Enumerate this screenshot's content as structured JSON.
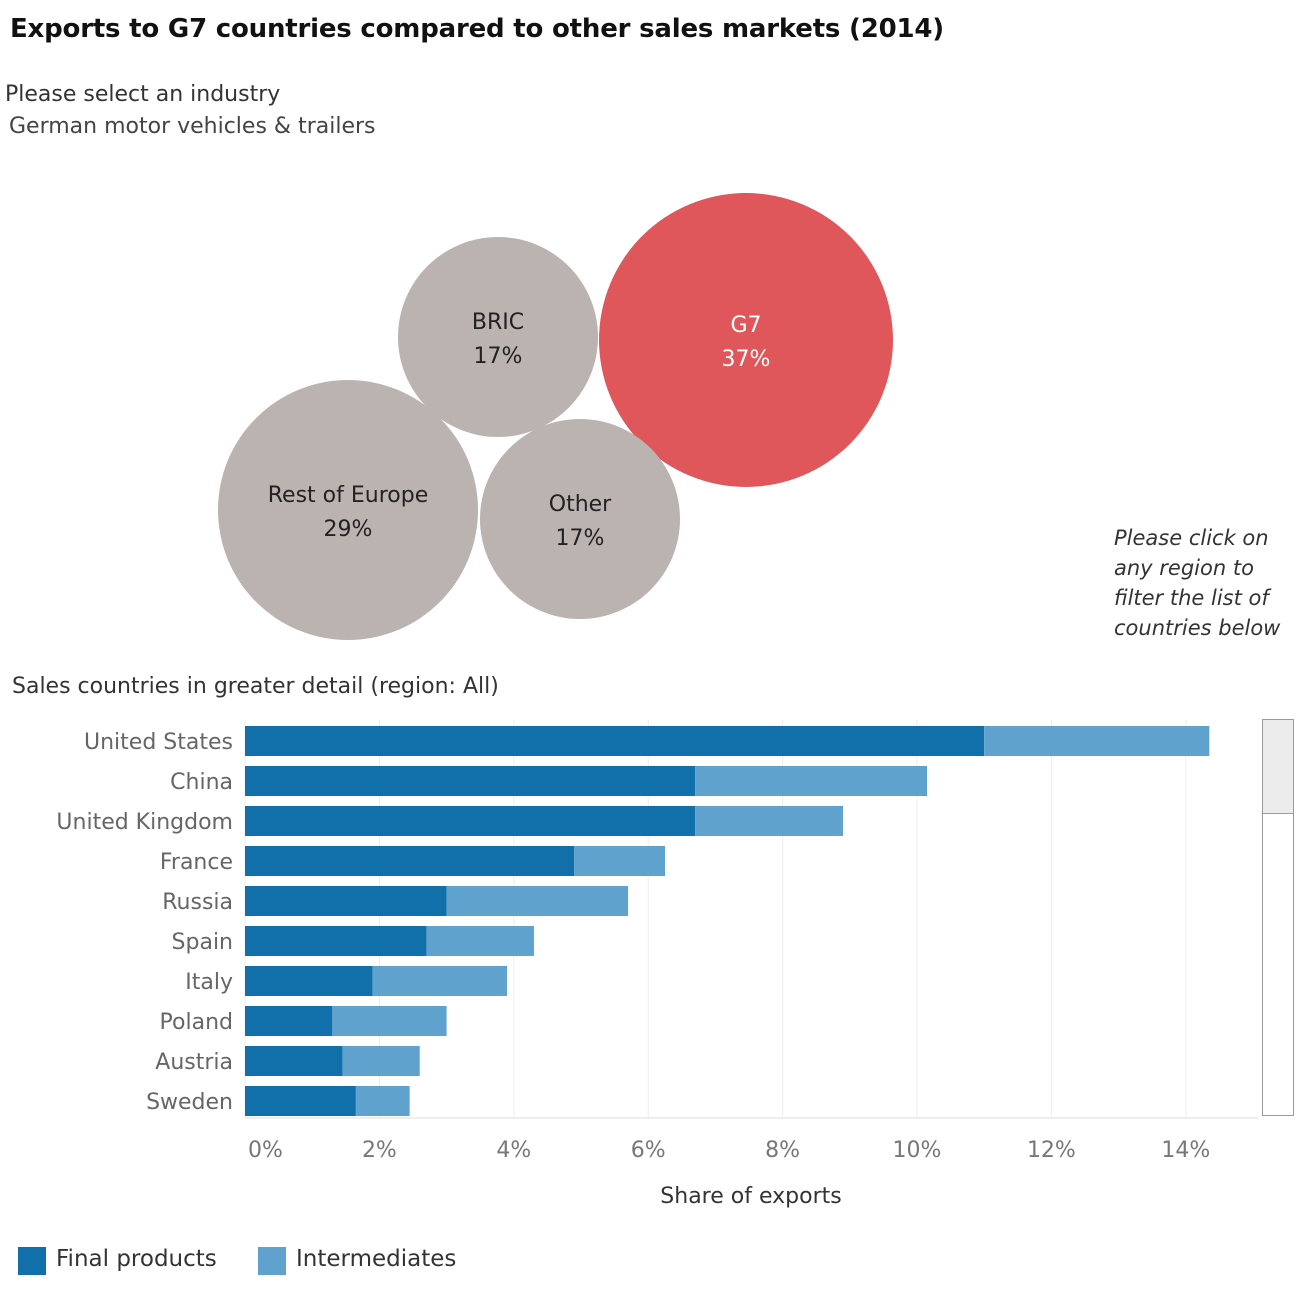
{
  "title": "Exports to G7 countries compared to other sales markets (2014)",
  "industry_selector": {
    "label": "Please select an industry",
    "value": "German motor vehicles & trailers"
  },
  "hint": "Please click on any region to filter the list of countries below",
  "detail_title": "Sales countries in greater detail (region: All)",
  "colors": {
    "final": "#1170aa",
    "intermediate": "#5fa2ce",
    "bubble_grey": "#bab3b0",
    "bubble_highlight": "#e0575b"
  },
  "chart_data": [
    {
      "type": "bubble",
      "series": [
        {
          "name": "G7",
          "label": "37%",
          "value": 37,
          "highlight": true
        },
        {
          "name": "BRIC",
          "label": "17%",
          "value": 17,
          "highlight": false
        },
        {
          "name": "Rest of Europe",
          "label": "29%",
          "value": 29,
          "highlight": false
        },
        {
          "name": "Other",
          "label": "17%",
          "value": 17,
          "highlight": false
        }
      ]
    },
    {
      "type": "bar",
      "stacked": true,
      "orientation": "horizontal",
      "categories": [
        "United States",
        "China",
        "United Kingdom",
        "France",
        "Russia",
        "Spain",
        "Italy",
        "Poland",
        "Austria",
        "Sweden"
      ],
      "series": [
        {
          "name": "Final products",
          "color": "#1170aa",
          "values": [
            11.0,
            6.7,
            6.7,
            4.9,
            3.0,
            2.7,
            1.9,
            1.3,
            1.45,
            1.65
          ]
        },
        {
          "name": "Intermediates",
          "color": "#5fa2ce",
          "values": [
            3.35,
            3.45,
            2.2,
            1.35,
            2.7,
            1.6,
            2.0,
            1.7,
            1.15,
            0.8
          ]
        }
      ],
      "xlabel": "Share of exports",
      "xlim": [
        0,
        14.5
      ],
      "xticks": [
        0,
        2,
        4,
        6,
        8,
        10,
        12,
        14
      ],
      "xtick_labels": [
        "0%",
        "2%",
        "4%",
        "6%",
        "8%",
        "10%",
        "12%",
        "14%"
      ],
      "grid": true,
      "legend_position": "bottom-left"
    }
  ]
}
